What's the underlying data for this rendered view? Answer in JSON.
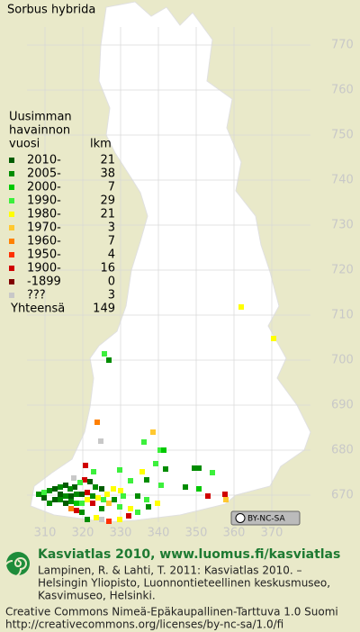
{
  "title": "Sorbus hybrida",
  "legend": {
    "heading": [
      "Uusimman",
      "havainnon",
      "vuosi"
    ],
    "count_heading": "lkm",
    "items": [
      {
        "label": "2010-",
        "count": "21",
        "color": "#005c00"
      },
      {
        "label": "2005-",
        "count": "38",
        "color": "#008c00"
      },
      {
        "label": "2000-",
        "count": "7",
        "color": "#00c800"
      },
      {
        "label": "1990-",
        "count": "29",
        "color": "#3cf03c"
      },
      {
        "label": "1980-",
        "count": "21",
        "color": "#ffff00"
      },
      {
        "label": "1970-",
        "count": "3",
        "color": "#ffc830"
      },
      {
        "label": "1960-",
        "count": "7",
        "color": "#ff8000"
      },
      {
        "label": "1950-",
        "count": "4",
        "color": "#ff3000"
      },
      {
        "label": "1900-",
        "count": "16",
        "color": "#d00000"
      },
      {
        "label": "-1899",
        "count": "0",
        "color": "#800000"
      },
      {
        "label": "???",
        "count": "3",
        "color": "#c8c8c8"
      }
    ],
    "total_label": "Yhteensä",
    "total": "149"
  },
  "y_labels": [
    "770",
    "760",
    "750",
    "740",
    "730",
    "720",
    "710",
    "700",
    "690",
    "680",
    "670"
  ],
  "x_labels": [
    "310",
    "320",
    "330",
    "340",
    "350",
    "360",
    "370"
  ],
  "license_badge": "BY-NC-SA",
  "footer": {
    "headline": "Kasviatlas 2010, www.luomus.fi/kasviatlas",
    "citation": [
      "Lampinen, R. & Lahti, T. 2011: Kasviatlas 2010. –",
      "Helsingin Yliopisto, Luonnontieteellinen keskusmuseo,",
      "Kasvimuseo, Helsinki."
    ],
    "license": [
      "Creative Commons Nimeä-Epäkaupallinen-Tarttuva 1.0 Suomi",
      "http://creativecommons.org/licenses/by-nc-sa/1.0/fi"
    ]
  }
}
